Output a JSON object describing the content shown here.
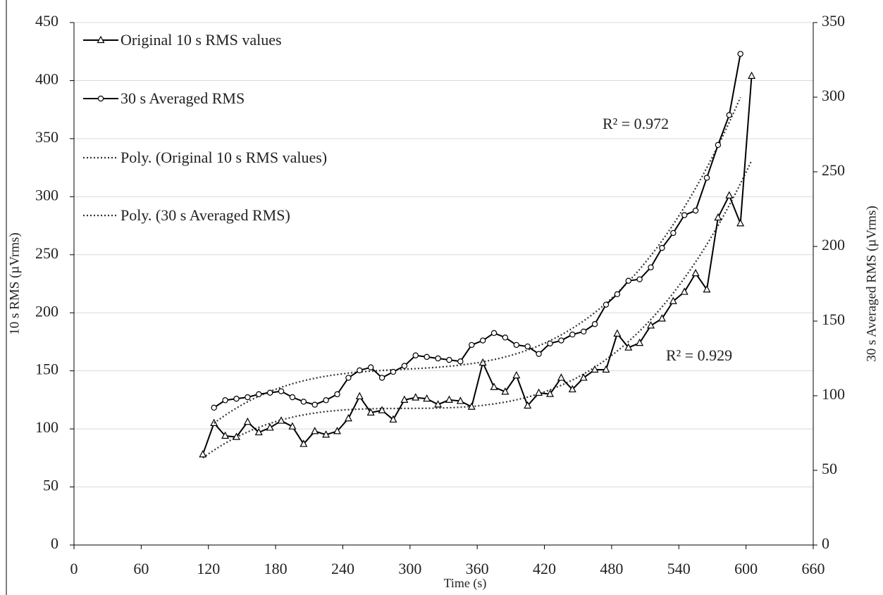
{
  "chart_data": {
    "type": "line",
    "xlabel": "Time (s)",
    "ylabel": "10 s RMS (µVrms)",
    "y2label": "30 s Averaged RMS (µVrms)",
    "xlim": [
      0,
      660
    ],
    "xticks": [
      0,
      60,
      120,
      180,
      240,
      300,
      360,
      420,
      480,
      540,
      600,
      660
    ],
    "ylim": [
      0,
      450
    ],
    "yticks": [
      0,
      50,
      100,
      150,
      200,
      250,
      300,
      350,
      400,
      450
    ],
    "y2lim": [
      0,
      350
    ],
    "y2ticks": [
      0,
      50,
      100,
      150,
      200,
      250,
      300,
      350
    ],
    "grid": true,
    "legend": "upper left",
    "series": [
      {
        "name": "Original 10 s RMS values",
        "color": "#000000",
        "marker": "triangle",
        "axis": "y",
        "x": [
          115,
          125,
          135,
          145,
          155,
          165,
          175,
          185,
          195,
          205,
          215,
          225,
          235,
          245,
          255,
          265,
          275,
          285,
          295,
          305,
          315,
          325,
          335,
          345,
          355,
          365,
          375,
          385,
          395,
          405,
          415,
          425,
          435,
          445,
          455,
          465,
          475,
          485,
          495,
          505,
          515,
          525,
          535,
          545,
          555,
          565,
          575,
          585,
          595,
          605
        ],
        "values": [
          78,
          105,
          94,
          93,
          106,
          97,
          101,
          107,
          102,
          87,
          98,
          95,
          98,
          109,
          128,
          114,
          116,
          108,
          125,
          127,
          126,
          121,
          125,
          124,
          119,
          157,
          136,
          132,
          146,
          120,
          131,
          130,
          144,
          134,
          144,
          151,
          151,
          182,
          170,
          174,
          189,
          195,
          210,
          218,
          234,
          220,
          282,
          301,
          277,
          404
        ],
        "trendline": {
          "name": "Poly. (Original 10 s RMS values)",
          "type": "poly",
          "label": "R² = 0.929"
        }
      },
      {
        "name": "30 s Averaged RMS",
        "color": "#000000",
        "marker": "circle",
        "axis": "y2",
        "x": [
          125,
          135,
          145,
          155,
          165,
          175,
          185,
          195,
          205,
          215,
          225,
          235,
          245,
          255,
          265,
          275,
          285,
          295,
          305,
          315,
          325,
          335,
          345,
          355,
          365,
          375,
          385,
          395,
          405,
          415,
          425,
          435,
          445,
          455,
          465,
          475,
          485,
          495,
          505,
          515,
          525,
          535,
          545,
          555,
          565,
          575,
          585,
          595
        ],
        "values": [
          92,
          97,
          98,
          99,
          101,
          102,
          103,
          99,
          96,
          94,
          97,
          101,
          112,
          117,
          119,
          112,
          116,
          120,
          127,
          126,
          125,
          124,
          123,
          134,
          137,
          142,
          139,
          134,
          133,
          128,
          135,
          137,
          141,
          143,
          148,
          161,
          168,
          177,
          178,
          186,
          199,
          209,
          221,
          224,
          246,
          268,
          288,
          329
        ],
        "trendline": {
          "name": "Poly. (30 s Averaged RMS)",
          "type": "poly",
          "label": "R² = 0.972"
        }
      }
    ]
  }
}
